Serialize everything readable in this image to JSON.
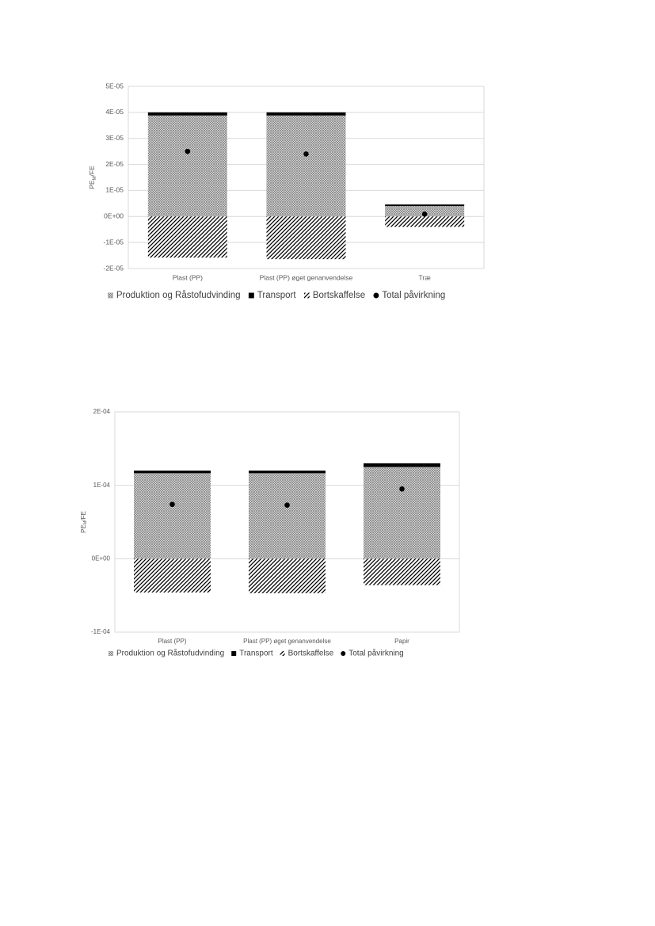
{
  "chart_data": [
    {
      "type": "bar",
      "stacked": true,
      "categories": [
        "Plast (PP)",
        "Plast (PP) øget genanvendelse",
        "Træ"
      ],
      "ylabel": [
        "PE",
        "M",
        "/FE"
      ],
      "ylim": [
        -2e-05,
        5e-05
      ],
      "yticks": [
        {
          "value": -2e-05,
          "label": "-2E-05"
        },
        {
          "value": -1e-05,
          "label": "-1E-05"
        },
        {
          "value": 0,
          "label": "0E+00"
        },
        {
          "value": 1e-05,
          "label": "1E-05"
        },
        {
          "value": 2e-05,
          "label": "2E-05"
        },
        {
          "value": 3e-05,
          "label": "3E-05"
        },
        {
          "value": 4e-05,
          "label": "4E-05"
        },
        {
          "value": 5e-05,
          "label": "5E-05"
        }
      ],
      "grid": true,
      "series": [
        {
          "name": "Produktion og Råstofudvinding",
          "color": "#8c8c8c",
          "pattern": "crosshatch",
          "values": [
            3.88e-05,
            3.88e-05,
            4e-06
          ]
        },
        {
          "name": "Transport",
          "color": "#000000",
          "values": [
            1.2e-06,
            1.2e-06,
            6e-07
          ]
        },
        {
          "name": "Bortskaffelse",
          "color": "#000000",
          "pattern": "diagonal",
          "values": [
            -1.58e-05,
            -1.64e-05,
            -4e-06
          ]
        },
        {
          "name": "Total påvirkning",
          "color": "#000000",
          "type": "scatter",
          "values": [
            2.5e-05,
            2.4e-05,
            9e-07
          ]
        }
      ]
    },
    {
      "type": "bar",
      "stacked": true,
      "categories": [
        "Plast (PP)",
        "Plast (PP) øget genanvendelse",
        "Papir"
      ],
      "ylabel": [
        "PE",
        "M",
        "/FE"
      ],
      "ylim": [
        -0.0001,
        0.0002
      ],
      "yticks": [
        {
          "value": -0.0001,
          "label": "-1E-04"
        },
        {
          "value": 0,
          "label": "0E+00"
        },
        {
          "value": 0.0001,
          "label": "1E-04"
        },
        {
          "value": 0.0002,
          "label": "2E-04"
        }
      ],
      "grid": true,
      "series": [
        {
          "name": "Produktion og Råstofudvinding",
          "color": "#8c8c8c",
          "pattern": "crosshatch",
          "values": [
            0.0001165,
            0.0001165,
            0.000125
          ]
        },
        {
          "name": "Transport",
          "color": "#000000",
          "values": [
            3.5e-06,
            3.5e-06,
            5e-06
          ]
        },
        {
          "name": "Bortskaffelse",
          "color": "#000000",
          "pattern": "diagonal",
          "values": [
            -4.6e-05,
            -4.7e-05,
            -3.6e-05
          ]
        },
        {
          "name": "Total påvirkning",
          "color": "#000000",
          "type": "scatter",
          "values": [
            7.4e-05,
            7.3e-05,
            9.5e-05
          ]
        }
      ]
    }
  ]
}
